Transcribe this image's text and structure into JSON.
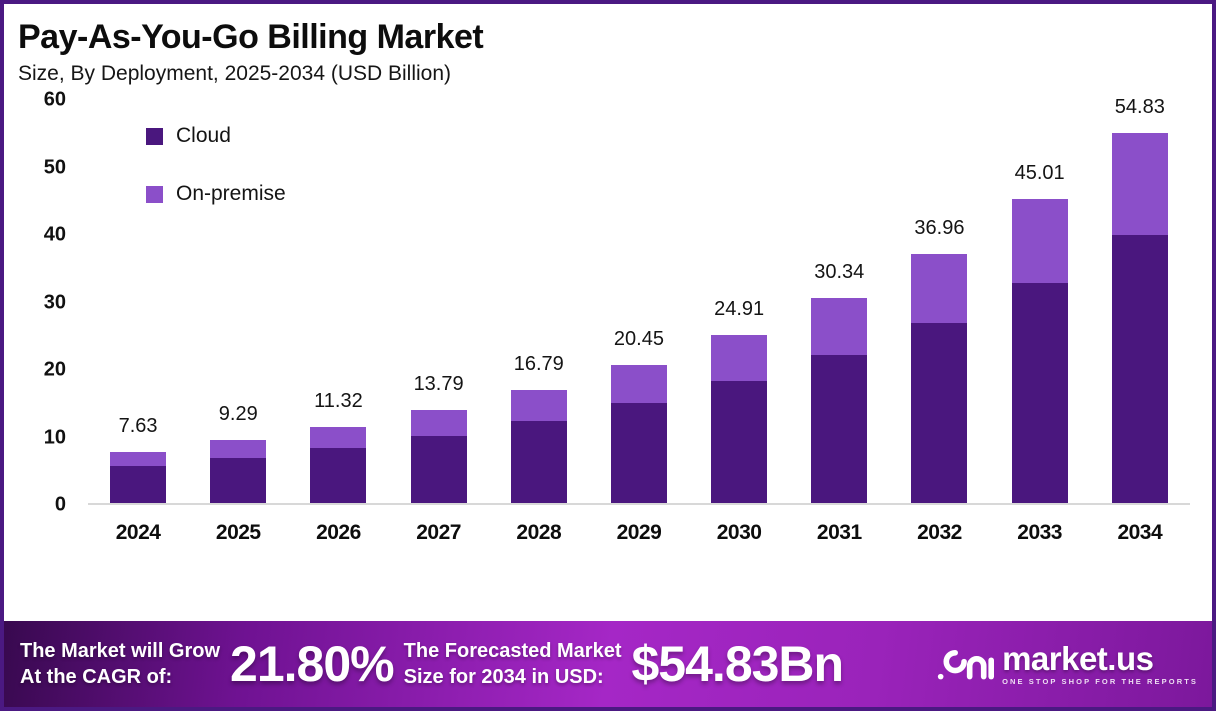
{
  "header": {
    "title": "Pay-As-You-Go Billing Market",
    "subtitle": "Size, By Deployment, 2025-2034 (USD Billion)"
  },
  "chart_data": {
    "type": "bar",
    "stacked": true,
    "title": "Pay-As-You-Go Billing Market Size, By Deployment, 2025-2034 (USD Billion)",
    "categories": [
      "2024",
      "2025",
      "2026",
      "2027",
      "2028",
      "2029",
      "2030",
      "2031",
      "2032",
      "2033",
      "2034"
    ],
    "series": [
      {
        "name": "Cloud",
        "color": "#4A177E",
        "values": [
          5.52,
          6.72,
          8.19,
          9.97,
          12.14,
          14.79,
          18.01,
          21.94,
          26.72,
          32.54,
          39.64
        ]
      },
      {
        "name": "On-premise",
        "color": "#8B4FC9",
        "values": [
          2.11,
          2.57,
          3.13,
          3.82,
          4.65,
          5.66,
          6.9,
          8.4,
          10.24,
          12.47,
          15.19
        ]
      }
    ],
    "total_labels": [
      "7.63",
      "9.29",
      "11.32",
      "13.79",
      "16.79",
      "20.45",
      "24.91",
      "30.34",
      "36.96",
      "45.01",
      "54.83"
    ],
    "xlabel": "",
    "ylabel": "",
    "ylim": [
      0,
      60
    ],
    "yticks": [
      0,
      10,
      20,
      30,
      40,
      50,
      60
    ],
    "grid": false,
    "legend_position": "top-left",
    "baseline_color": "#D8D8D8"
  },
  "banner": {
    "cagr_label": "The Market will Grow\nAt the CAGR of:",
    "cagr_value": "21.80%",
    "forecast_label": "The Forecasted Market\nSize for 2034 in USD:",
    "forecast_value": "$54.83Bn",
    "brand": {
      "name": "market.us",
      "tagline": "ONE STOP SHOP FOR THE REPORTS"
    }
  },
  "colors": {
    "border": "#4B1982",
    "cloud": "#4A177E",
    "on_premise": "#8B4FC9",
    "banner_mid": "#A527C6"
  }
}
